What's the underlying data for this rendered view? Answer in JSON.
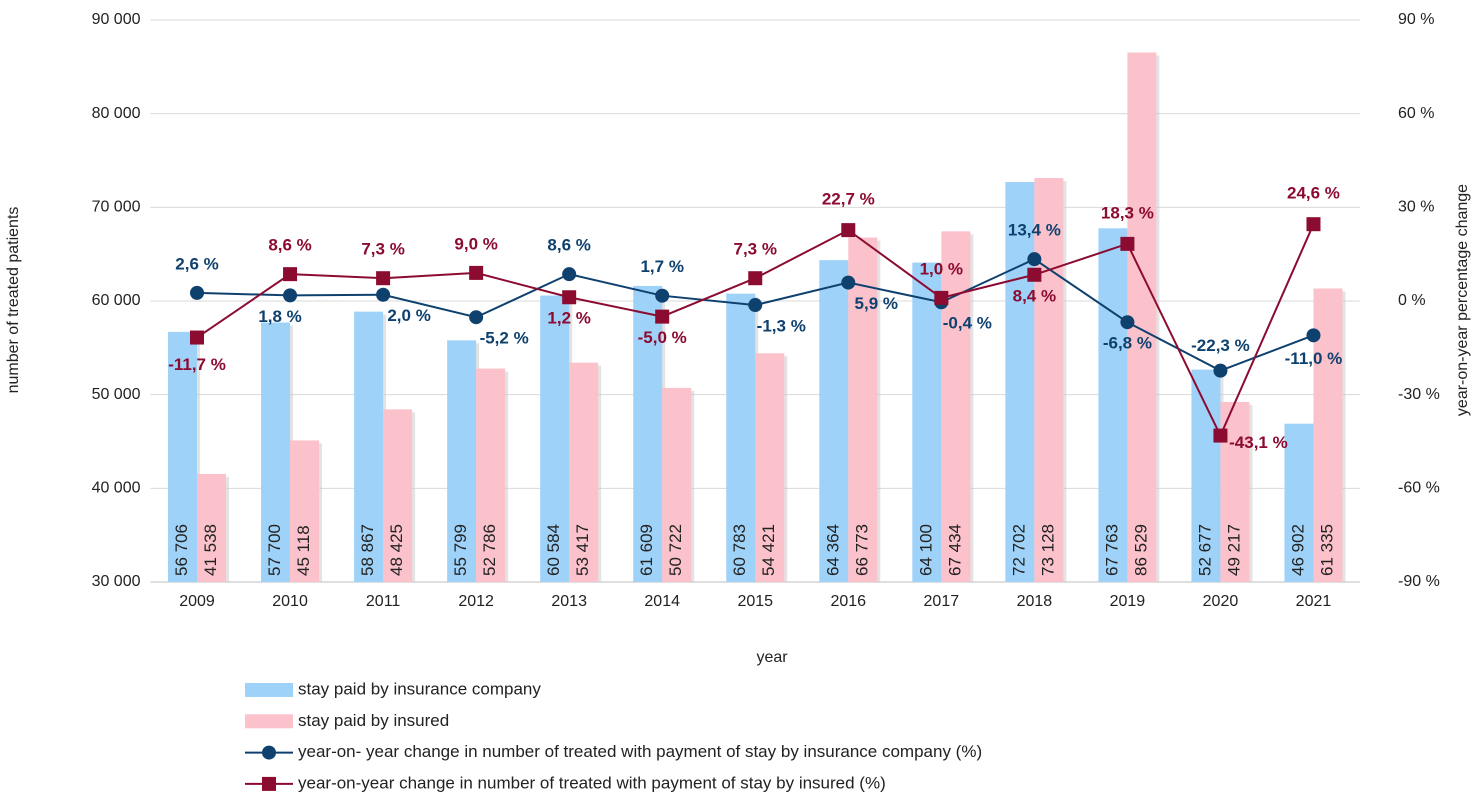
{
  "chart_data": {
    "type": "bar",
    "categories": [
      "2009",
      "2010",
      "2011",
      "2012",
      "2013",
      "2014",
      "2015",
      "2016",
      "2017",
      "2018",
      "2019",
      "2020",
      "2021"
    ],
    "xlabel": "year",
    "ylabel": "number of treated patients",
    "y2label": "year-on-year percentage change",
    "ylim": [
      30000,
      90000
    ],
    "yticks": [
      {
        "value": 30000,
        "label": "30 000"
      },
      {
        "value": 40000,
        "label": "40 000"
      },
      {
        "value": 50000,
        "label": "50 000"
      },
      {
        "value": 60000,
        "label": "60 000"
      },
      {
        "value": 70000,
        "label": "70 000"
      },
      {
        "value": 80000,
        "label": "80 000"
      },
      {
        "value": 90000,
        "label": "90 000"
      }
    ],
    "y2lim": [
      -90,
      90
    ],
    "y2ticks": [
      {
        "value": -90,
        "label": "-90 %"
      },
      {
        "value": -60,
        "label": "-60 %"
      },
      {
        "value": -30,
        "label": "-30 %"
      },
      {
        "value": 0,
        "label": "0 %"
      },
      {
        "value": 30,
        "label": "30 %"
      },
      {
        "value": 60,
        "label": "60 %"
      },
      {
        "value": 90,
        "label": "90 %"
      }
    ],
    "grid": true,
    "legend": "bottom",
    "series": [
      {
        "name": "stay paid by insurance company",
        "type": "bar",
        "color": "#9fd2f8",
        "values": [
          56706,
          57700,
          58867,
          55799,
          60584,
          61609,
          60783,
          64364,
          64100,
          72702,
          67763,
          52677,
          46902
        ],
        "value_labels": [
          "56 706",
          "57 700",
          "58 867",
          "55 799",
          "60 584",
          "61 609",
          "60 783",
          "64 364",
          "64 100",
          "72 702",
          "67 763",
          "52 677",
          "46 902"
        ]
      },
      {
        "name": "stay paid by insured",
        "type": "bar",
        "color": "#fbc2cb",
        "values": [
          41538,
          45118,
          48425,
          52786,
          53417,
          50722,
          54421,
          66773,
          67434,
          73128,
          86529,
          49217,
          61335
        ],
        "value_labels": [
          "41 538",
          "45 118",
          "48 425",
          "52 786",
          "53 417",
          "50 722",
          "54 421",
          "66 773",
          "67 434",
          "73 128",
          "86 529",
          "49 217",
          "61 335"
        ]
      },
      {
        "name": "year-on- year change in number of treated with payment of stay by insurance company (%)",
        "type": "line",
        "axis": "y2",
        "marker": "circle",
        "color": "#0f416f",
        "values": [
          2.6,
          1.8,
          2.0,
          -5.2,
          8.6,
          1.7,
          -1.3,
          5.9,
          -0.4,
          13.4,
          -6.8,
          -22.3,
          -11.0
        ],
        "value_labels": [
          "2,6 %",
          "1,8 %",
          "2,0 %",
          "-5,2 %",
          "8,6 %",
          "1,7 %",
          "-1,3 %",
          "5,9 %",
          "-0,4 %",
          "13,4 %",
          "-6,8 %",
          "-22,3 %",
          "-11,0 %"
        ]
      },
      {
        "name": "year-on-year change in number of treated with payment of stay by insured (%)",
        "type": "line",
        "axis": "y2",
        "marker": "square",
        "color": "#8c0b30",
        "values": [
          -11.7,
          8.6,
          7.3,
          9.0,
          1.2,
          -5.0,
          7.3,
          22.7,
          1.0,
          8.4,
          18.3,
          -43.1,
          24.6
        ],
        "value_labels": [
          "-11,7 %",
          "8,6 %",
          "7,3 %",
          "9,0 %",
          "1,2 %",
          "-5,0 %",
          "7,3 %",
          "22,7 %",
          "1,0 %",
          "8,4 %",
          "18,3 %",
          "-43,1 %",
          "24,6 %"
        ]
      }
    ]
  }
}
